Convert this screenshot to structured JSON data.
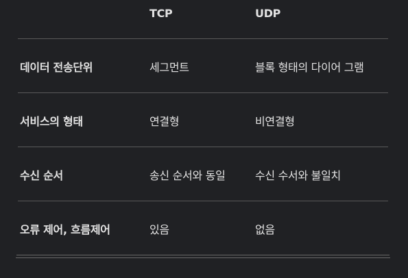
{
  "columns": [
    "",
    "TCP",
    "UDP"
  ],
  "rows": [
    {
      "label": "데이터 전송단위",
      "tcp": "세그먼트",
      "udp": "블록 형태의 다이어 그램"
    },
    {
      "label": "서비스의 형태",
      "tcp": "연결형",
      "udp": "비연결형"
    },
    {
      "label": "수신 순서",
      "tcp": "송신 순서와 동일",
      "udp": "수신 수서와 불일치"
    },
    {
      "label": "오류 제어, 흐름제어",
      "tcp": "있음",
      "udp": "없음"
    }
  ]
}
